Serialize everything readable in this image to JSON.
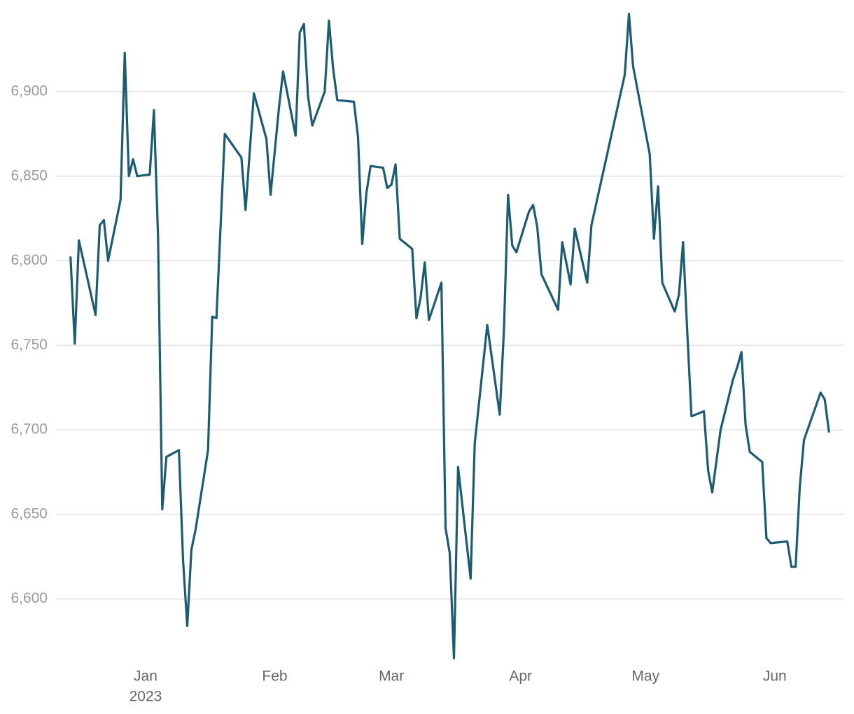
{
  "chart_data": {
    "type": "line",
    "x": [
      "2022-12-14",
      "2022-12-15",
      "2022-12-16",
      "2022-12-20",
      "2022-12-21",
      "2022-12-22",
      "2022-12-23",
      "2022-12-26",
      "2022-12-27",
      "2022-12-28",
      "2022-12-29",
      "2022-12-30",
      "2023-01-02",
      "2023-01-03",
      "2023-01-04",
      "2023-01-05",
      "2023-01-06",
      "2023-01-09",
      "2023-01-10",
      "2023-01-11",
      "2023-01-12",
      "2023-01-13",
      "2023-01-16",
      "2023-01-17",
      "2023-01-18",
      "2023-01-20",
      "2023-01-24",
      "2023-01-25",
      "2023-01-27",
      "2023-01-30",
      "2023-01-31",
      "2023-02-02",
      "2023-02-03",
      "2023-02-06",
      "2023-02-07",
      "2023-02-08",
      "2023-02-09",
      "2023-02-10",
      "2023-02-13",
      "2023-02-14",
      "2023-02-15",
      "2023-02-16",
      "2023-02-20",
      "2023-02-21",
      "2023-02-22",
      "2023-02-23",
      "2023-02-24",
      "2023-02-27",
      "2023-02-28",
      "2023-03-01",
      "2023-03-02",
      "2023-03-03",
      "2023-03-06",
      "2023-03-07",
      "2023-03-08",
      "2023-03-09",
      "2023-03-10",
      "2023-03-13",
      "2023-03-14",
      "2023-03-15",
      "2023-03-16",
      "2023-03-17",
      "2023-03-20",
      "2023-03-21",
      "2023-03-24",
      "2023-03-27",
      "2023-03-28",
      "2023-03-29",
      "2023-03-30",
      "2023-03-31",
      "2023-04-03",
      "2023-04-04",
      "2023-04-05",
      "2023-04-06",
      "2023-04-10",
      "2023-04-11",
      "2023-04-13",
      "2023-04-14",
      "2023-04-17",
      "2023-04-18",
      "2023-04-26",
      "2023-04-27",
      "2023-04-28",
      "2023-05-02",
      "2023-05-03",
      "2023-05-04",
      "2023-05-05",
      "2023-05-08",
      "2023-05-09",
      "2023-05-10",
      "2023-05-11",
      "2023-05-12",
      "2023-05-15",
      "2023-05-16",
      "2023-05-17",
      "2023-05-19",
      "2023-05-22",
      "2023-05-23",
      "2023-05-24",
      "2023-05-25",
      "2023-05-26",
      "2023-05-29",
      "2023-05-30",
      "2023-05-31",
      "2023-06-04",
      "2023-06-05",
      "2023-06-06",
      "2023-06-07",
      "2023-06-08",
      "2023-06-12",
      "2023-06-13",
      "2023-06-14"
    ],
    "values": [
      6802,
      6751,
      6812,
      6768,
      6821,
      6824,
      6800,
      6836,
      6923,
      6850,
      6860,
      6850,
      6851,
      6889,
      6814,
      6653,
      6684,
      6688,
      6623,
      6584,
      6629,
      6641,
      6688,
      6767,
      6766,
      6875,
      6861,
      6830,
      6899,
      6872,
      6839,
      6890,
      6912,
      6874,
      6935,
      6940,
      6897,
      6880,
      6900,
      6942,
      6914,
      6895,
      6894,
      6873,
      6810,
      6840,
      6856,
      6855,
      6843,
      6845,
      6857,
      6813,
      6807,
      6766,
      6778,
      6799,
      6765,
      6787,
      6642,
      6627,
      6565,
      6678,
      6612,
      6692,
      6762,
      6709,
      6759,
      6839,
      6809,
      6805,
      6829,
      6833,
      6820,
      6792,
      6771,
      6811,
      6786,
      6819,
      6787,
      6821,
      6910,
      6946,
      6915,
      6863,
      6813,
      6844,
      6787,
      6770,
      6780,
      6811,
      6758,
      6708,
      6711,
      6676,
      6663,
      6700,
      6730,
      6737,
      6746,
      6703,
      6687,
      6681,
      6636,
      6633,
      6634,
      6619,
      6619,
      6666,
      6694,
      6722,
      6718,
      6699
    ],
    "color": "#1a5c73",
    "xlim": [
      "2022-12-10",
      "2023-06-18"
    ],
    "xticks": [
      {
        "value": "2023-01-01",
        "label": "Jan",
        "sublabel": "2023"
      },
      {
        "value": "2023-02-01",
        "label": "Feb"
      },
      {
        "value": "2023-03-01",
        "label": "Mar"
      },
      {
        "value": "2023-04-01",
        "label": "Apr"
      },
      {
        "value": "2023-05-01",
        "label": "May"
      },
      {
        "value": "2023-06-01",
        "label": "Jun"
      }
    ],
    "ylim": [
      6563,
      6948
    ],
    "yticks": [
      {
        "value": 6600,
        "label": "6,600"
      },
      {
        "value": 6650,
        "label": "6,650"
      },
      {
        "value": 6700,
        "label": "6,700"
      },
      {
        "value": 6750,
        "label": "6,750"
      },
      {
        "value": 6800,
        "label": "6,800"
      },
      {
        "value": 6850,
        "label": "6,850"
      },
      {
        "value": 6900,
        "label": "6,900"
      }
    ],
    "grid": true
  }
}
